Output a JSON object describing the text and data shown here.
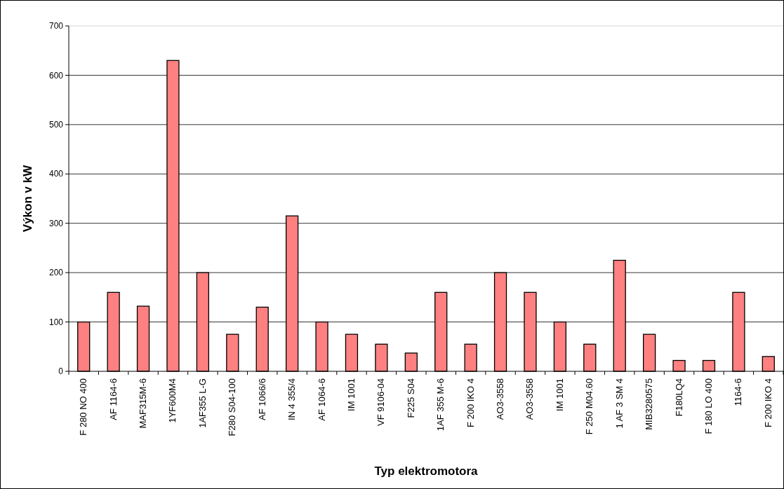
{
  "chart_data": {
    "type": "bar",
    "xlabel": "Typ elektromotora",
    "ylabel": "Výkon v kW",
    "categories": [
      "F 280 NO 400",
      "AF 1164-6",
      "MAF315M-6",
      "1YF600M4",
      "1AF355 L-G",
      "F280 S04-100",
      "AF 1066/6",
      "IN 4 355/4",
      "AF 1064-6",
      "IM 1001",
      "VF 9106-04",
      "F225 S04",
      "1AF 355 M-6",
      "F 200 IKO 4",
      "AO3-3558",
      "AO3-3558",
      "IM 1001",
      "F 250 M04.60",
      "1 AF 3 SM 4",
      "MIB3280575",
      "F180LQ4",
      "F 180 LO 400",
      "1164-6",
      "F 200 IKO 4"
    ],
    "values": [
      100,
      160,
      132,
      630,
      200,
      75,
      130,
      315,
      100,
      75,
      55,
      37,
      160,
      55,
      200,
      160,
      100,
      55,
      225,
      75,
      22,
      22,
      160,
      30
    ],
    "color": "#ff8080",
    "ylim": [
      0,
      700
    ],
    "yticks": [
      0,
      100,
      200,
      300,
      400,
      500,
      600,
      700
    ],
    "grid": "y"
  }
}
